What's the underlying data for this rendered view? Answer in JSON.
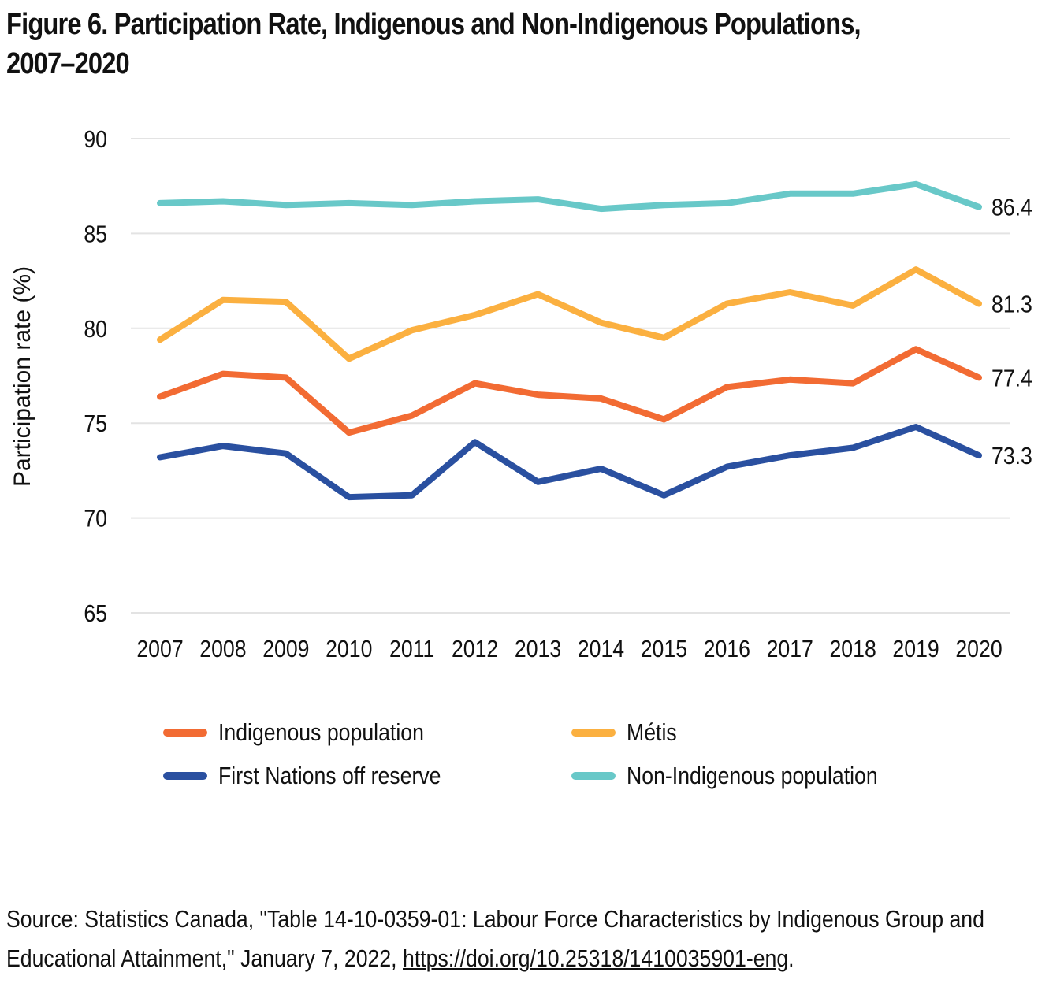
{
  "figure": {
    "title_line1": "Figure 6. Participation Rate, Indigenous and Non-Indigenous Populations,",
    "title_line2": "2007–2020"
  },
  "source": {
    "prefix": "Source: Statistics Canada, \"Table 14-10-0359-01: Labour Force Characteristics by Indigenous Group and Educational Attainment,\" January 7, 2022, ",
    "link_text": "https://doi.org/10.25318/1410035901-eng",
    "suffix": "."
  },
  "chart_data": {
    "type": "line",
    "title": "Figure 6. Participation Rate, Indigenous and Non-Indigenous Populations, 2007–2020",
    "xlabel": "",
    "ylabel": "Participation rate (%)",
    "ylim": [
      65,
      90
    ],
    "yticks": [
      "65",
      "70",
      "75",
      "80",
      "85",
      "90"
    ],
    "grid": true,
    "legend_position": "bottom",
    "categories": [
      "2007",
      "2008",
      "2009",
      "2010",
      "2011",
      "2012",
      "2013",
      "2014",
      "2015",
      "2016",
      "2017",
      "2018",
      "2019",
      "2020"
    ],
    "series": [
      {
        "name": "Indigenous population",
        "color": "#F26B33",
        "values": [
          76.4,
          77.6,
          77.4,
          74.5,
          75.4,
          77.1,
          76.5,
          76.3,
          75.2,
          76.9,
          77.3,
          77.1,
          78.9,
          77.4
        ],
        "end_label": "77.4"
      },
      {
        "name": "Métis",
        "color": "#FBB040",
        "values": [
          79.4,
          81.5,
          81.4,
          78.4,
          79.9,
          80.7,
          81.8,
          80.3,
          79.5,
          81.3,
          81.9,
          81.2,
          83.1,
          81.3
        ],
        "end_label": "81.3"
      },
      {
        "name": "First Nations off reserve",
        "color": "#2A50A0",
        "values": [
          73.2,
          73.8,
          73.4,
          71.1,
          71.2,
          74.0,
          71.9,
          72.6,
          71.2,
          72.7,
          73.3,
          73.7,
          74.8,
          73.3
        ],
        "end_label": "73.3"
      },
      {
        "name": "Non-Indigenous population",
        "color": "#68C8C8",
        "values": [
          86.6,
          86.7,
          86.5,
          86.6,
          86.5,
          86.7,
          86.8,
          86.3,
          86.5,
          86.6,
          87.1,
          87.1,
          87.6,
          86.4
        ],
        "end_label": "86.4"
      }
    ],
    "legend_order": [
      0,
      1,
      2,
      3
    ]
  }
}
